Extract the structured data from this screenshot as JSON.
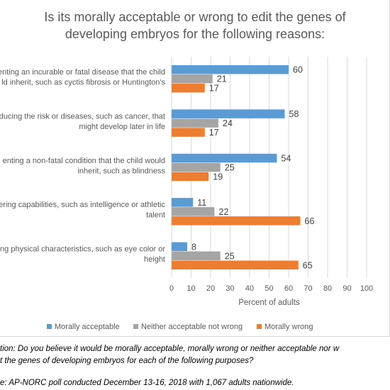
{
  "chart_data": {
    "type": "bar",
    "orientation": "horizontal",
    "title": "Is its morally acceptable or wrong to edit the genes of developing embryos for the following reasons:",
    "title_lines": [
      "Is its morally acceptable or wrong to edit the genes of",
      "developing embryos for the following reasons:"
    ],
    "categories": [
      "enting an incurable or fatal disease that the child would inherit, such as cyctis fibrosis or Huntington's",
      "educing the risk or diseases, such as cancer, that might develop later in life",
      "enting a non-fatal condition that the child would inherit, such as blindness",
      "ering capabilities, such as intelligence or athletic talent",
      "ering physical characteristics, such as eye color or height"
    ],
    "category_lines": [
      [
        "enting an incurable or fatal disease that the child",
        "ld inherit, such as cyctis fibrosis or Huntington's"
      ],
      [
        "educing the risk or diseases, such as cancer, that",
        "might develop later in life"
      ],
      [
        "enting a non-fatal condition that the child would",
        "inherit, such as blindness"
      ],
      [
        "ering capabilities, such as intelligence or athletic",
        "talent"
      ],
      [
        "ring physical characteristics, such as eye color or",
        "height"
      ]
    ],
    "series": [
      {
        "name": "Morally acceptable",
        "color": "#5b9bd5",
        "values": [
          60,
          58,
          54,
          11,
          8
        ]
      },
      {
        "name": "Neither acceptable not wrong",
        "color": "#a5a5a5",
        "values": [
          21,
          24,
          25,
          22,
          25
        ]
      },
      {
        "name": "Morally wrong",
        "color": "#ed7d31",
        "values": [
          17,
          17,
          19,
          66,
          65
        ]
      }
    ],
    "xlabel": "Percent of adults",
    "xlim": [
      0,
      100
    ],
    "xticks": [
      0,
      10,
      20,
      30,
      40,
      50,
      60,
      70,
      80,
      90,
      100
    ],
    "grid": true,
    "legend_position": "bottom"
  },
  "footnotes": {
    "question_line1": "tion: Do you believe it would be morally acceptable, morally wrong or neither acceptable nor w",
    "question_line2": "t the genes of developing embryos for each of the following purposes?",
    "source": "e: AP-NORC poll conducted December 13-16, 2018 with 1,067 adults nationwide."
  }
}
